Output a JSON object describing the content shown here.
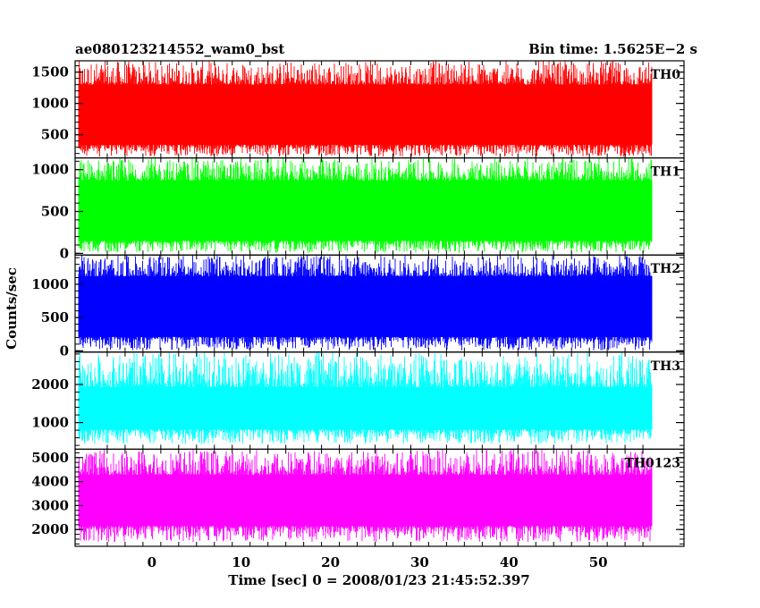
{
  "header": {
    "title": "ae080123214552_wam0_bst",
    "bin_time": "Bin time: 1.5625E−2 s"
  },
  "chart_data": {
    "type": "line",
    "title": "ae080123214552_wam0_bst",
    "subtitle": "Bin time: 1.5625E−2 s",
    "xlabel": "Time [sec] 0 = 2008/01/23 21:45:52.397",
    "ylabel": "Counts/sec",
    "xlim": [
      -8.6,
      59.6
    ],
    "data_xrange": [
      -8.2,
      56.0
    ],
    "xticks": [
      0,
      10,
      20,
      30,
      40,
      50
    ],
    "xtick_labels": [
      "0",
      "10",
      "20",
      "30",
      "40",
      "50"
    ],
    "grid": false,
    "panels": [
      {
        "name": "TH0",
        "color": "#ff0000",
        "ylim": [
          130,
          1680
        ],
        "yticks": [
          500,
          1000,
          1500
        ],
        "ytick_labels": [
          "500",
          "1000",
          "1500"
        ],
        "min": 150,
        "max": 1680,
        "lower_envelope": 340,
        "upper_envelope": 1300
      },
      {
        "name": "TH1",
        "color": "#00ff00",
        "ylim": [
          -20,
          1140
        ],
        "yticks": [
          0,
          500,
          1000
        ],
        "ytick_labels": [
          "0",
          "500",
          "1000"
        ],
        "min": 5,
        "max": 1140,
        "lower_envelope": 150,
        "upper_envelope": 870
      },
      {
        "name": "TH2",
        "color": "#0000ff",
        "ylim": [
          -20,
          1440
        ],
        "yticks": [
          0,
          500,
          1000
        ],
        "ytick_labels": [
          "0",
          "500",
          "1000"
        ],
        "min": 5,
        "max": 1440,
        "lower_envelope": 210,
        "upper_envelope": 1120
      },
      {
        "name": "TH3",
        "color": "#00ffff",
        "ylim": [
          300,
          2850
        ],
        "yticks": [
          1000,
          2000
        ],
        "ytick_labels": [
          "1000",
          "2000"
        ],
        "min": 440,
        "max": 2850,
        "lower_envelope": 820,
        "upper_envelope": 1930
      },
      {
        "name": "TH0123",
        "color": "#ff00ff",
        "ylim": [
          1300,
          5350
        ],
        "yticks": [
          2000,
          3000,
          4000,
          5000
        ],
        "ytick_labels": [
          "2000",
          "3000",
          "4000",
          "5000"
        ],
        "min": 1480,
        "max": 5350,
        "lower_envelope": 2150,
        "upper_envelope": 4280
      }
    ]
  }
}
